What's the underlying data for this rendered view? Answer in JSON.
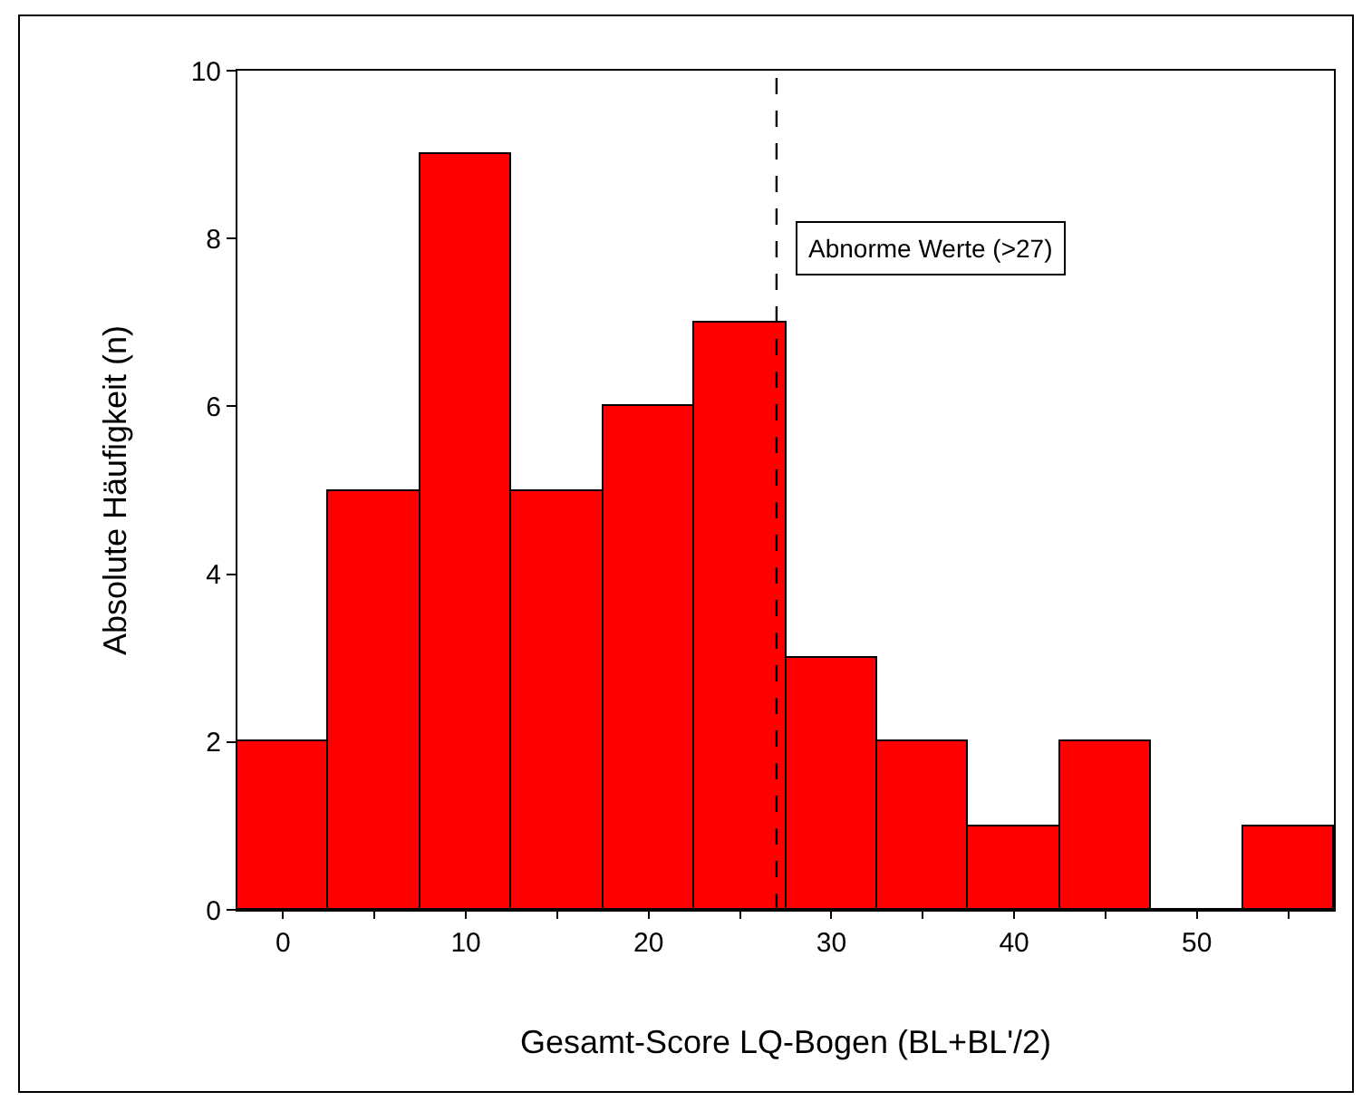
{
  "chart_data": {
    "type": "histogram",
    "xlabel": "Gesamt-Score LQ-Bogen (BL+BL'/2)",
    "ylabel": "Absolute Häufigkeit (n)",
    "bins": [
      -2.5,
      2.5,
      7.5,
      12.5,
      17.5,
      22.5,
      27.5,
      32.5,
      37.5,
      42.5,
      47.5,
      52.5,
      57.5
    ],
    "values": [
      2,
      5,
      9,
      5,
      6,
      7,
      3,
      2,
      1,
      2,
      0,
      1
    ],
    "color": "#ff0000",
    "xlim": [
      -2.5,
      57.5
    ],
    "xticks": [
      0,
      {
        "value": 5,
        "label": null
      },
      10,
      {
        "value": 15,
        "label": null
      },
      20,
      {
        "value": 25,
        "label": null
      },
      30,
      {
        "value": 35,
        "label": null
      },
      40,
      {
        "value": 45,
        "label": null
      },
      50,
      {
        "value": 55,
        "label": null
      }
    ],
    "ylim": [
      0,
      10
    ],
    "yticks": [
      0,
      2,
      4,
      6,
      8,
      10
    ],
    "ref_lines": [
      {
        "axis": "x",
        "value": 27,
        "label": "Abnorme Werte (>27)",
        "color": "#000000",
        "line_style": "dashed"
      }
    ]
  }
}
